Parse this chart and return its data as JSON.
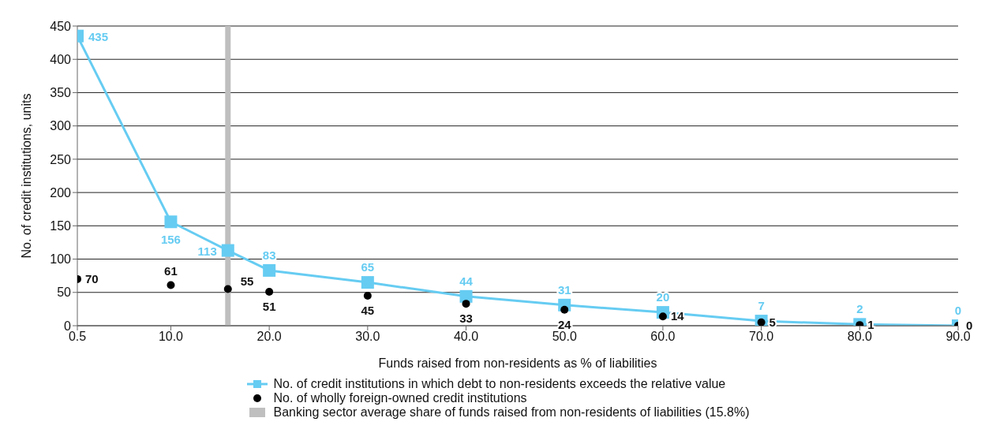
{
  "chart_data": {
    "type": "line",
    "xlabel": "Funds raised from non-residents as % of liabilities",
    "ylabel": "No. of credit institutions, units",
    "x": [
      0.5,
      10,
      15.8,
      20,
      30,
      40,
      50,
      60,
      70,
      80,
      90
    ],
    "series": [
      {
        "name": "No. of credit institutions in which debt to non-residents exceeds the relative value",
        "color": "#66ccf2",
        "marker": "square",
        "values": [
          435,
          156,
          113,
          83,
          65,
          44,
          31,
          20,
          7,
          2,
          0
        ]
      },
      {
        "name": "No. of wholly foreign-owned credit institutions",
        "type": "scatter",
        "color": "#000000",
        "marker": "circle",
        "values": [
          70,
          61,
          55,
          51,
          45,
          33,
          24,
          14,
          5,
          1,
          0
        ]
      }
    ],
    "ref_lines": [
      {
        "axis": "x",
        "value": 15.8,
        "label": "Banking sector average share of funds raised from non-residents of liabilities (15.8%)",
        "color": "#bfbfbf"
      }
    ],
    "xlim": [
      0.5,
      90
    ],
    "xticks": [
      {
        "value": 0.5,
        "label": "0.5"
      },
      {
        "value": 10,
        "label": "10.0"
      },
      {
        "value": 20,
        "label": "20.0"
      },
      {
        "value": 30,
        "label": "30.0"
      },
      {
        "value": 40,
        "label": "40.0"
      },
      {
        "value": 50,
        "label": "50.0"
      },
      {
        "value": 60,
        "label": "60.0"
      },
      {
        "value": 70,
        "label": "70.0"
      },
      {
        "value": 80,
        "label": "80.0"
      },
      {
        "value": 90,
        "label": "90.0"
      }
    ],
    "ylim": [
      0,
      450
    ],
    "yticks": [
      0,
      50,
      100,
      150,
      200,
      250,
      300,
      350,
      400,
      450
    ],
    "grid": "y",
    "legend": "bottom",
    "data_labels": true
  }
}
